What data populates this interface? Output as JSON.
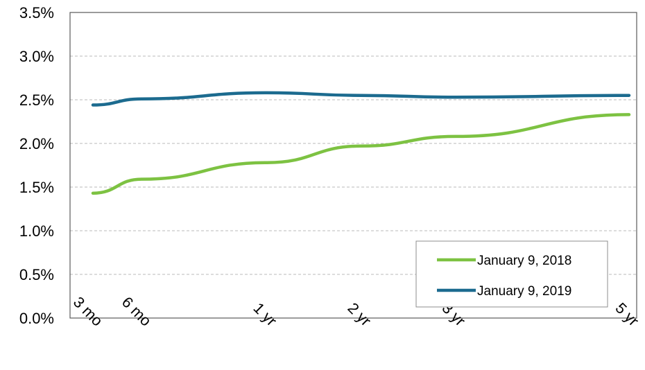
{
  "chart_data": {
    "type": "line",
    "x": [
      "3 mo",
      "6 mo",
      "1 yr",
      "2 yr",
      "3 yr",
      "5 yr"
    ],
    "x_positions": [
      0.25,
      0.5,
      1,
      2,
      3,
      5
    ],
    "y_ticks": [
      "0.0%",
      "0.5%",
      "1.0%",
      "1.5%",
      "2.0%",
      "2.5%",
      "3.0%",
      "3.5%"
    ],
    "ylim": [
      0,
      3.5
    ],
    "grid": true,
    "legend_position": "bottom-right",
    "series": [
      {
        "name": "January 9, 2018",
        "color": "#7dc242",
        "values": [
          1.43,
          1.59,
          1.78,
          1.97,
          2.08,
          2.33
        ]
      },
      {
        "name": "January 9, 2019",
        "color": "#1c6b8f",
        "values": [
          2.44,
          2.51,
          2.58,
          2.55,
          2.53,
          2.55
        ]
      }
    ]
  }
}
